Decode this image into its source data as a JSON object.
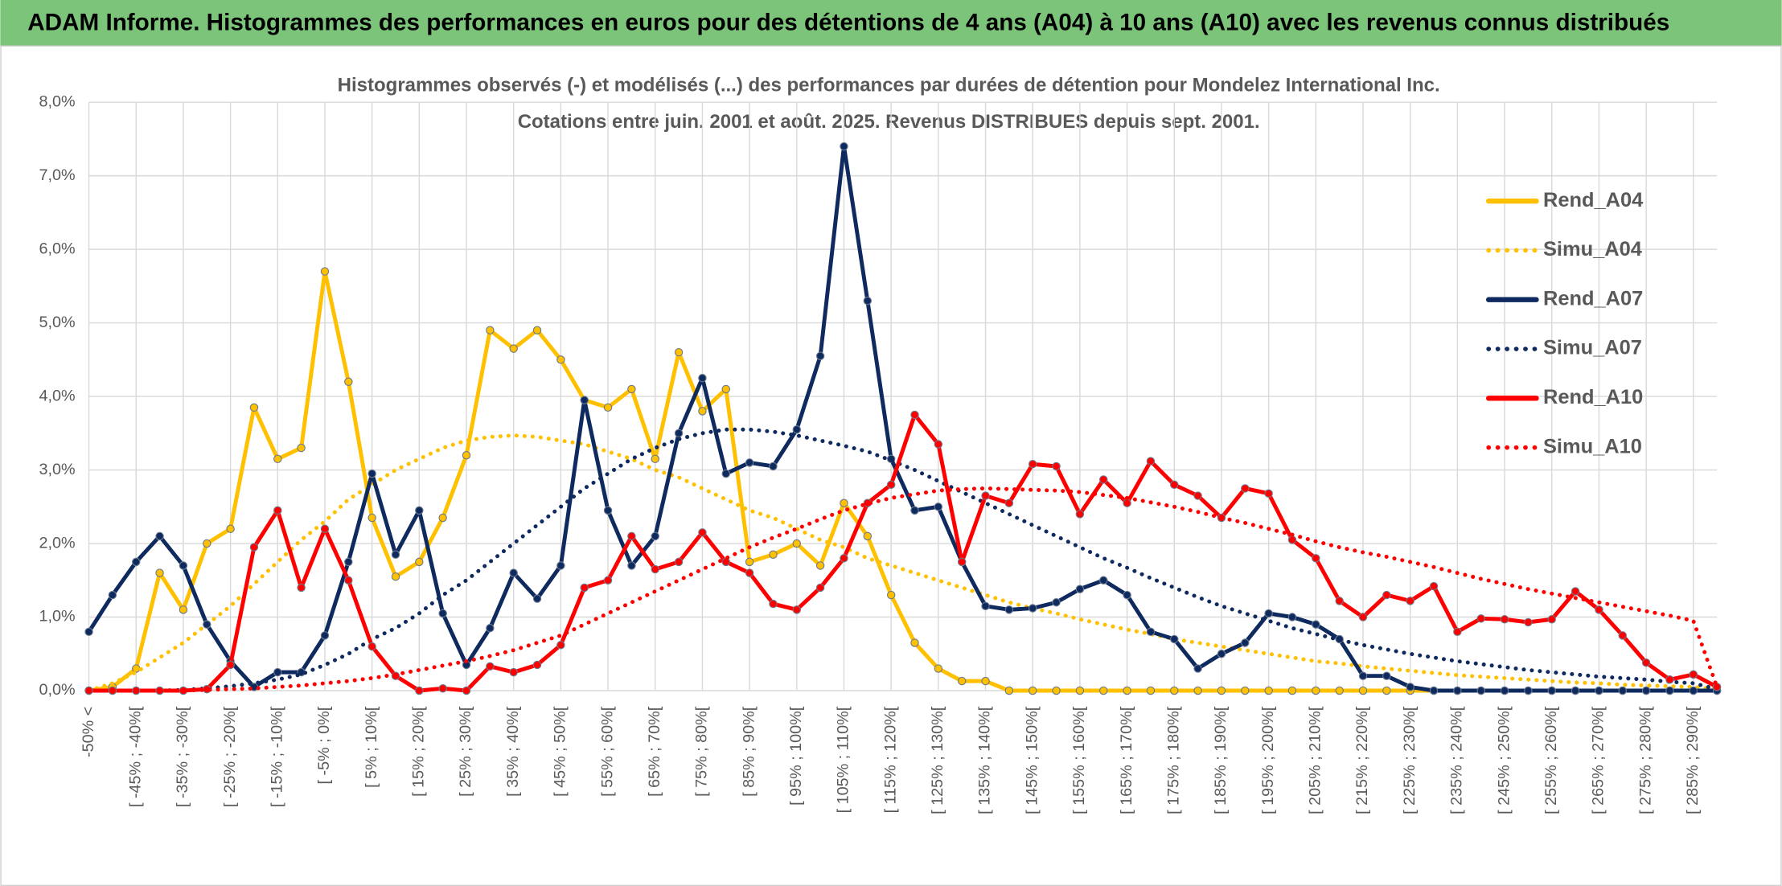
{
  "chart_data": {
    "type": "line",
    "title": "ADAM Informe. Histogrammes des performances en euros pour des détentions de 4 ans (A04) à 10 ans (A10) avec les revenus connus distribués",
    "subtitle": [
      "Histogrammes observés (-) et modélisés (...) des performances par durées de détention pour Mondelez International Inc.",
      "Cotations entre juin. 2001 et août. 2025. Revenus DISTRIBUES depuis sept. 2001."
    ],
    "categories": [
      "-50% <",
      null,
      "[ -45% ; -40%[",
      null,
      "[ -35% ; -30%[",
      null,
      "[ -25% ; -20%[",
      null,
      "[ -15% ; -10%[",
      null,
      "[ -5% ; 0%[",
      null,
      "[ 5% ; 10%[",
      null,
      "[ 15% ; 20%[",
      null,
      "[ 25% ; 30%[",
      null,
      "[ 35% ; 40%[",
      null,
      "[ 45% ; 50%[",
      null,
      "[ 55% ; 60%[",
      null,
      "[ 65% ; 70%[",
      null,
      "[ 75% ; 80%[",
      null,
      "[ 85% ; 90%[",
      null,
      "[ 95% ; 100%[",
      null,
      "[ 105% ; 110%[",
      null,
      "[ 115% ; 120%[",
      null,
      "[ 125% ; 130%[",
      null,
      "[ 135% ; 140%[",
      null,
      "[ 145% ; 150%[",
      null,
      "[ 155% ; 160%[",
      null,
      "[ 165% ; 170%[",
      null,
      "[ 175% ; 180%[",
      null,
      "[ 185% ; 190%[",
      null,
      "[ 195% ; 200%[",
      null,
      "[ 205% ; 210%[",
      null,
      "[ 215% ; 220%[",
      null,
      "[ 225% ; 230%[",
      null,
      "[ 235% ; 240%[",
      null,
      "[ 245% ; 250%[",
      null,
      "[ 255% ; 260%[",
      null,
      "[ 265% ; 270%[",
      null,
      "[ 275% ; 280%[",
      null,
      "[ 285% ; 290%[",
      null
    ],
    "ylim": [
      0,
      8
    ],
    "yticks": [
      {
        "value": 0,
        "label": "0,0%"
      },
      {
        "value": 1,
        "label": "1,0%"
      },
      {
        "value": 2,
        "label": "2,0%"
      },
      {
        "value": 3,
        "label": "3,0%"
      },
      {
        "value": 4,
        "label": "4,0%"
      },
      {
        "value": 5,
        "label": "5,0%"
      },
      {
        "value": 6,
        "label": "6,0%"
      },
      {
        "value": 7,
        "label": "7,0%"
      },
      {
        "value": 8,
        "label": "8,0%"
      }
    ],
    "grid": true,
    "legend": "right",
    "series": [
      {
        "name": "Rend_A04",
        "color": "#ffc000",
        "style": "solid",
        "markers": true,
        "values": [
          0,
          0.05,
          0.3,
          1.6,
          1.1,
          2.0,
          2.2,
          3.85,
          3.15,
          3.3,
          5.7,
          4.2,
          2.35,
          1.55,
          1.75,
          2.35,
          3.2,
          4.9,
          4.65,
          4.9,
          4.5,
          3.95,
          3.85,
          4.1,
          3.15,
          4.6,
          3.8,
          4.1,
          1.75,
          1.85,
          2.0,
          1.7,
          2.55,
          2.1,
          1.3,
          0.65,
          0.3,
          0.13,
          0.13,
          0,
          0,
          0,
          0,
          0,
          0,
          0,
          0,
          0,
          0,
          0,
          0,
          0,
          0,
          0,
          0,
          0,
          0,
          0,
          0,
          0,
          0,
          0,
          0,
          0,
          0,
          0,
          0,
          0,
          0,
          0
        ]
      },
      {
        "name": "Simu_A04",
        "color": "#ffc000",
        "style": "dotted",
        "markers": false,
        "values": [
          0,
          0.1,
          0.25,
          0.45,
          0.65,
          0.9,
          1.15,
          1.45,
          1.75,
          2.05,
          2.3,
          2.6,
          2.8,
          3.0,
          3.15,
          3.3,
          3.4,
          3.45,
          3.47,
          3.45,
          3.4,
          3.35,
          3.25,
          3.15,
          3.0,
          2.9,
          2.75,
          2.6,
          2.45,
          2.35,
          2.2,
          2.05,
          1.95,
          1.8,
          1.7,
          1.6,
          1.5,
          1.4,
          1.3,
          1.2,
          1.12,
          1.05,
          0.97,
          0.9,
          0.83,
          0.77,
          0.7,
          0.65,
          0.6,
          0.55,
          0.5,
          0.45,
          0.4,
          0.37,
          0.33,
          0.3,
          0.27,
          0.24,
          0.21,
          0.19,
          0.17,
          0.15,
          0.13,
          0.11,
          0.1,
          0.08,
          0.07,
          0.06,
          0.05,
          0.02
        ]
      },
      {
        "name": "Rend_A07",
        "color": "#0f2a5e",
        "style": "solid",
        "markers": true,
        "values": [
          0.8,
          1.3,
          1.75,
          2.1,
          1.7,
          0.9,
          0.4,
          0.05,
          0.25,
          0.25,
          0.75,
          1.75,
          2.95,
          1.85,
          2.45,
          1.05,
          0.35,
          0.85,
          1.6,
          1.25,
          1.7,
          3.95,
          2.45,
          1.7,
          2.1,
          3.5,
          4.25,
          2.95,
          3.1,
          3.05,
          3.55,
          4.55,
          7.4,
          5.3,
          3.15,
          2.45,
          2.5,
          1.75,
          1.15,
          1.1,
          1.12,
          1.2,
          1.38,
          1.5,
          1.3,
          0.8,
          0.7,
          0.3,
          0.5,
          0.65,
          1.05,
          1.0,
          0.9,
          0.7,
          0.2,
          0.2,
          0.05,
          0,
          0,
          0,
          0,
          0,
          0,
          0,
          0,
          0,
          0,
          0,
          0,
          0
        ]
      },
      {
        "name": "Simu_A07",
        "color": "#0f2a5e",
        "style": "dotted",
        "markers": false,
        "values": [
          0,
          0,
          0,
          0,
          0.01,
          0.03,
          0.06,
          0.1,
          0.15,
          0.22,
          0.35,
          0.5,
          0.7,
          0.85,
          1.05,
          1.3,
          1.5,
          1.75,
          2.0,
          2.25,
          2.5,
          2.75,
          2.95,
          3.15,
          3.3,
          3.42,
          3.5,
          3.55,
          3.55,
          3.52,
          3.47,
          3.4,
          3.33,
          3.25,
          3.13,
          3.0,
          2.85,
          2.7,
          2.55,
          2.4,
          2.25,
          2.1,
          1.95,
          1.8,
          1.67,
          1.53,
          1.4,
          1.27,
          1.15,
          1.05,
          0.95,
          0.85,
          0.77,
          0.69,
          0.62,
          0.56,
          0.5,
          0.45,
          0.4,
          0.36,
          0.32,
          0.28,
          0.25,
          0.22,
          0.19,
          0.17,
          0.15,
          0.12,
          0.1,
          0.02
        ]
      },
      {
        "name": "Rend_A10",
        "color": "#ff0000",
        "style": "solid",
        "markers": true,
        "values": [
          0,
          0,
          0,
          0,
          0,
          0.02,
          0.35,
          1.95,
          2.45,
          1.4,
          2.2,
          1.5,
          0.6,
          0.2,
          0,
          0.03,
          0,
          0.33,
          0.25,
          0.35,
          0.62,
          1.4,
          1.5,
          2.1,
          1.65,
          1.75,
          2.15,
          1.75,
          1.6,
          1.18,
          1.1,
          1.4,
          1.8,
          2.55,
          2.8,
          3.75,
          3.35,
          1.75,
          2.65,
          2.55,
          3.08,
          3.05,
          2.4,
          2.87,
          2.55,
          3.12,
          2.8,
          2.65,
          2.35,
          2.75,
          2.68,
          2.05,
          1.8,
          1.22,
          1.0,
          1.3,
          1.22,
          1.42,
          0.8,
          0.98,
          0.97,
          0.93,
          0.97,
          1.35,
          1.1,
          0.75,
          0.38,
          0.15,
          0.22,
          0.05
        ]
      },
      {
        "name": "Simu_A10",
        "color": "#ff0000",
        "style": "dotted",
        "markers": false,
        "values": [
          0,
          0,
          0,
          0,
          0,
          0.01,
          0.02,
          0.03,
          0.05,
          0.07,
          0.1,
          0.13,
          0.17,
          0.22,
          0.28,
          0.34,
          0.4,
          0.47,
          0.55,
          0.65,
          0.75,
          0.9,
          1.05,
          1.2,
          1.35,
          1.5,
          1.65,
          1.8,
          1.95,
          2.08,
          2.2,
          2.33,
          2.45,
          2.54,
          2.62,
          2.67,
          2.72,
          2.74,
          2.75,
          2.74,
          2.73,
          2.72,
          2.7,
          2.66,
          2.62,
          2.56,
          2.5,
          2.43,
          2.35,
          2.28,
          2.2,
          2.12,
          2.03,
          1.95,
          1.88,
          1.82,
          1.75,
          1.68,
          1.6,
          1.52,
          1.45,
          1.38,
          1.32,
          1.26,
          1.2,
          1.14,
          1.08,
          1.02,
          0.95,
          0.05
        ]
      }
    ]
  }
}
